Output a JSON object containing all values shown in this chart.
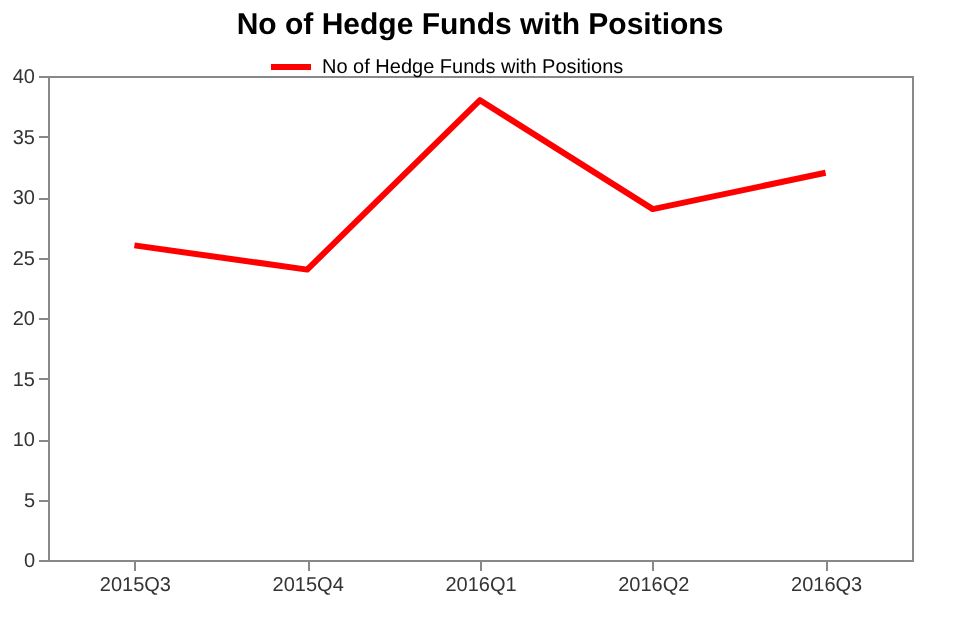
{
  "chart_data": {
    "type": "line",
    "title": "No of Hedge Funds with Positions",
    "categories": [
      "2015Q3",
      "2015Q4",
      "2016Q1",
      "2016Q2",
      "2016Q3"
    ],
    "series": [
      {
        "name": "No of Hedge Funds with Positions",
        "color": "#ff0000",
        "values": [
          26,
          24,
          38,
          29,
          32
        ]
      }
    ],
    "ylim": [
      0,
      40
    ],
    "yticks": [
      0,
      5,
      10,
      15,
      20,
      25,
      30,
      35,
      40
    ],
    "grid": false,
    "legend": "top",
    "marker": "none",
    "line_style": "solid"
  }
}
